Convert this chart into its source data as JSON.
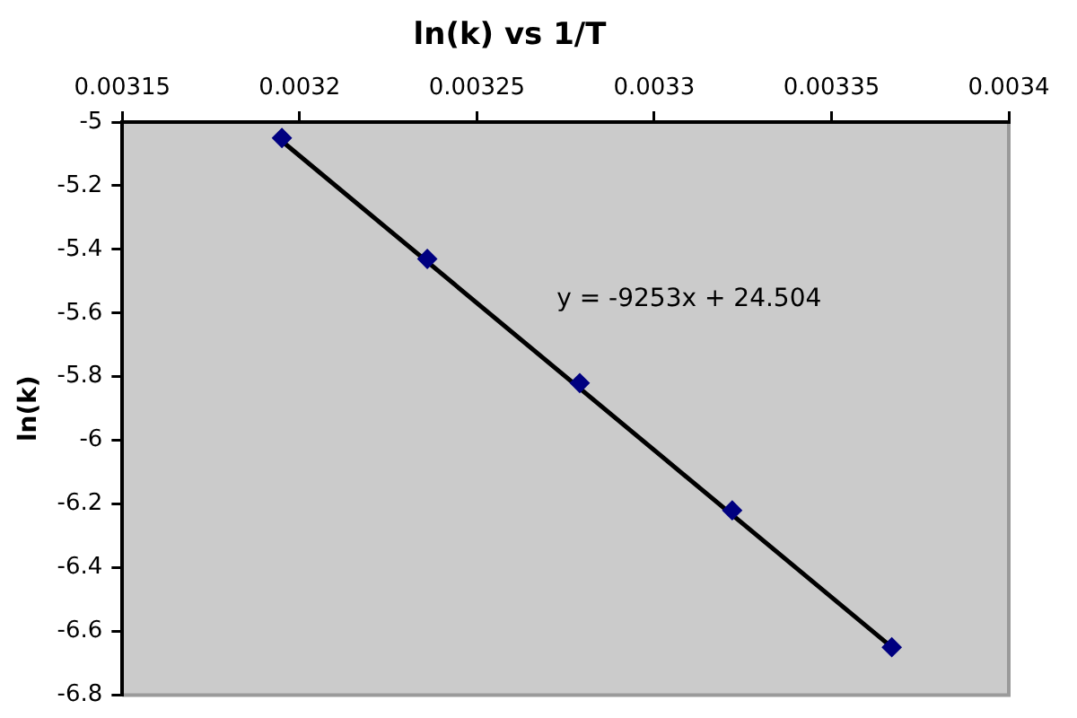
{
  "chart_data": {
    "type": "scatter",
    "title": "ln(k) vs 1/T",
    "ylabel": "ln(k)",
    "x": [
      0.003195,
      0.003236,
      0.003279,
      0.003322,
      0.003367
    ],
    "series": [
      {
        "color": "#000080",
        "values": [
          -5.05,
          -5.43,
          -5.82,
          -6.22,
          -6.65
        ]
      },
      {
        "type": "line",
        "color": "#000000",
        "marker": "none",
        "x": [
          0.003195,
          0.003367
        ],
        "values": [
          -5.06,
          -6.65
        ]
      }
    ],
    "xlim": [
      0.00315,
      0.0034
    ],
    "xticks": [
      0.00315,
      0.0032,
      0.00325,
      0.0033,
      0.00335,
      0.0034
    ],
    "ylim": [
      -6.8,
      -5
    ],
    "yticks": [
      -6.8,
      -6.6,
      -6.4,
      -6.2,
      -6,
      -5.8,
      -5.6,
      -5.4,
      -5.2,
      -5
    ],
    "marker": "diamond",
    "annotations": [
      "y = -9253x + 24.504"
    ]
  }
}
